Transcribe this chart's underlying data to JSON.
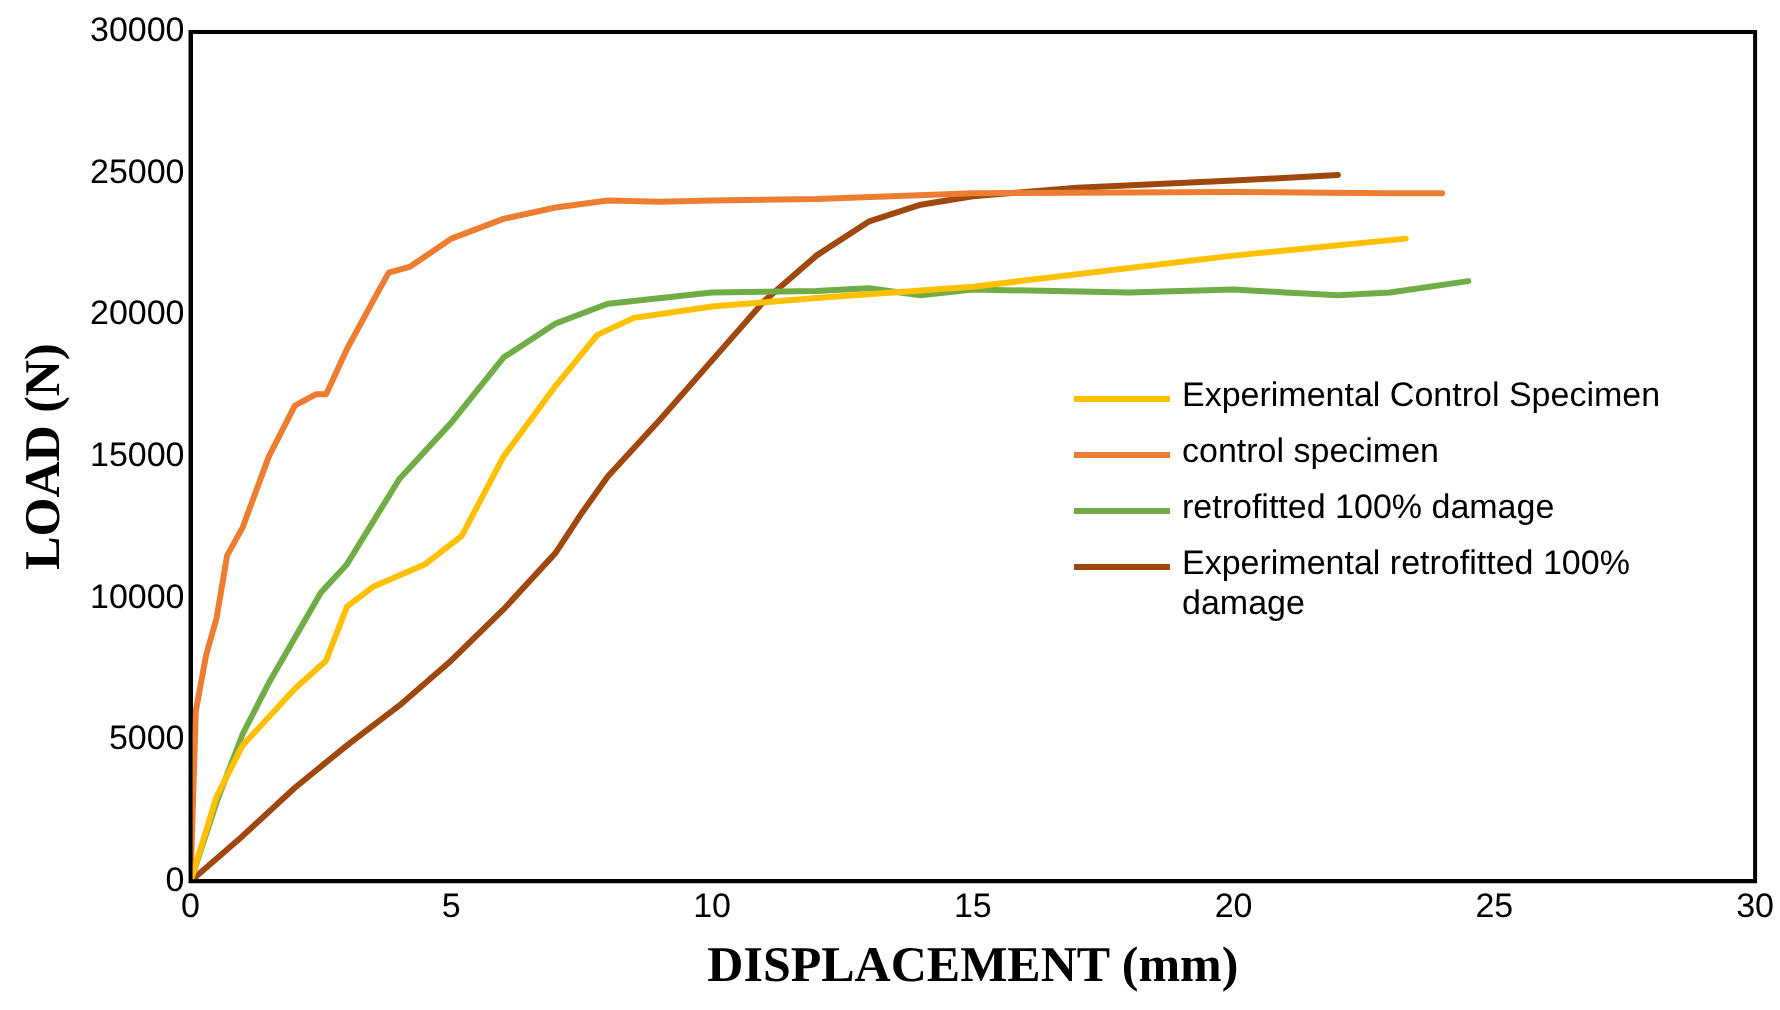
{
  "chart_data": {
    "type": "line",
    "xlabel": "DISPLACEMENT (mm)",
    "ylabel": "LOAD (N)",
    "xlim": [
      0,
      30
    ],
    "xticks": [
      0,
      5,
      10,
      15,
      20,
      25,
      30
    ],
    "ylim": [
      0,
      30000
    ],
    "yticks": [
      0,
      5000,
      10000,
      15000,
      20000,
      25000,
      30000
    ],
    "grid": false,
    "legend": "right",
    "marker": "none",
    "line_style": "solid",
    "series": [
      {
        "name": "Experimental Control Specimen",
        "color": "#ffc000",
        "x": [
          0,
          0.5,
          1,
          2,
          2.6,
          3,
          3.5,
          4.5,
          5.2,
          6,
          7,
          7.8,
          8.5,
          10,
          12,
          15,
          20,
          23.3
        ],
        "values": [
          0,
          3000,
          4800,
          6800,
          7800,
          9700,
          10400,
          11200,
          12200,
          15000,
          17500,
          19300,
          19900,
          20300,
          20600,
          21000,
          22100,
          22700
        ]
      },
      {
        "name": "control specimen",
        "color": "#ed7d31",
        "x": [
          0,
          0.1,
          0.3,
          0.5,
          0.7,
          1,
          1.5,
          2,
          2.4,
          2.6,
          3,
          3.5,
          3.8,
          4.2,
          5,
          6,
          7,
          8,
          9,
          10,
          12,
          15,
          20,
          23,
          24
        ],
        "values": [
          0,
          6000,
          8000,
          9300,
          11500,
          12500,
          15000,
          16800,
          17200,
          17200,
          18800,
          20500,
          21500,
          21700,
          22700,
          23400,
          23800,
          24050,
          24000,
          24050,
          24100,
          24300,
          24350,
          24300,
          24300
        ]
      },
      {
        "name": "retrofitted 100% damage",
        "color": "#70ad47",
        "x": [
          0,
          0.5,
          1,
          1.5,
          2,
          2.5,
          3,
          4,
          5,
          6,
          7,
          8,
          10,
          12,
          13,
          14,
          15,
          18,
          20,
          21,
          22,
          23,
          24.5
        ],
        "values": [
          0,
          2800,
          5200,
          7000,
          8600,
          10200,
          11200,
          14200,
          16200,
          18500,
          19700,
          20400,
          20800,
          20850,
          20950,
          20700,
          20900,
          20800,
          20900,
          20800,
          20700,
          20800,
          21200
        ]
      },
      {
        "name": "Experimental retrofitted 100% damage",
        "color": "#9e480e",
        "x": [
          0,
          1,
          2,
          3,
          4,
          5,
          6,
          7,
          7.5,
          8,
          9,
          10,
          11,
          12,
          13,
          14,
          15,
          17,
          20,
          22
        ],
        "values": [
          0,
          1600,
          3300,
          4800,
          6200,
          7800,
          9600,
          11600,
          13000,
          14300,
          16300,
          18400,
          20500,
          22100,
          23300,
          23900,
          24200,
          24500,
          24750,
          24950
        ]
      }
    ]
  }
}
